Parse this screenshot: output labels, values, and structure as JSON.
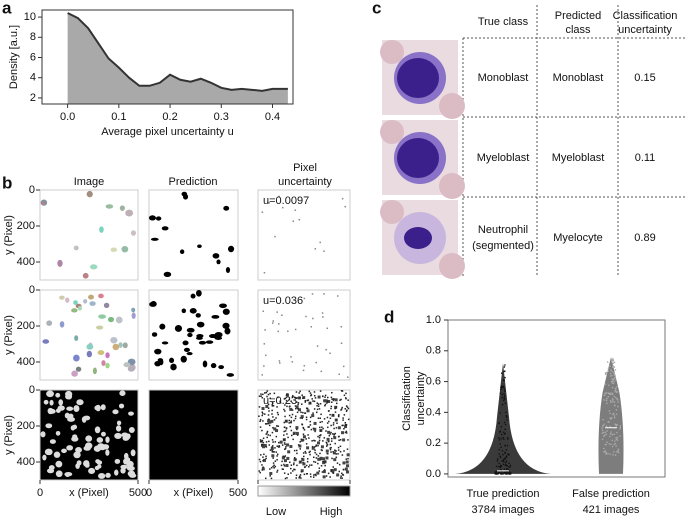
{
  "panel_letters": [
    "a",
    "b",
    "c",
    "d"
  ],
  "chart_data": [
    {
      "type": "area",
      "ylabel": "Density [a.u.]",
      "xlabel": "Average pixel uncertainty u",
      "x": [
        0,
        0.02,
        0.04,
        0.06,
        0.08,
        0.1,
        0.12,
        0.14,
        0.16,
        0.18,
        0.2,
        0.22,
        0.24,
        0.26,
        0.28,
        0.3,
        0.32,
        0.34,
        0.36,
        0.38,
        0.4,
        0.43
      ],
      "values": [
        10.4,
        9.9,
        8.9,
        7.4,
        5.9,
        5.0,
        4.0,
        3.2,
        3.2,
        3.5,
        4.3,
        3.8,
        3.6,
        3.9,
        3.5,
        3.0,
        2.8,
        2.9,
        2.8,
        2.7,
        2.9,
        2.9
      ],
      "color": "#a9a9a9",
      "line_color": "#333333",
      "xlim": [
        -0.05,
        0.44
      ],
      "ylim": [
        1.4,
        10.7
      ],
      "xticks": [
        {
          "value": 0,
          "label": "0.0"
        },
        0.1,
        0.2,
        0.3,
        0.4
      ],
      "yticks": [
        2,
        4,
        6,
        8,
        10
      ]
    },
    {
      "type": "violin",
      "ylabel": [
        "Classification",
        "uncertainty"
      ],
      "categories": [
        "True prediction",
        "False prediction"
      ],
      "sublabels": [
        "3784 images",
        "421 images"
      ],
      "values": [
        [
          0,
          0.02,
          0.72
        ],
        [
          0,
          0.3,
          0.76
        ]
      ],
      "colors": [
        "#3a3a3a",
        "#7d7d7d"
      ],
      "ylim": [
        -0.02,
        1.0
      ],
      "yticks": [
        {
          "value": 0,
          "label": "0.0"
        },
        0.2,
        0.4,
        0.6,
        0.8,
        {
          "value": 1,
          "label": "1.0"
        }
      ]
    }
  ],
  "panel_b": {
    "columns": [
      "Image",
      "Prediction",
      [
        "Pixel",
        "uncertainty"
      ]
    ],
    "annotations": [
      "u=0.0097",
      "u=0.036",
      "u=0.23"
    ],
    "y_label": "y (Pixel)",
    "x_label": "x (Pixel)",
    "xlim": [
      0,
      500
    ],
    "ylim": [
      0,
      500
    ],
    "yticks": [
      0,
      200,
      400
    ],
    "xticks": [
      0,
      500
    ],
    "colorbar": [
      "Low",
      "High"
    ]
  },
  "panel_c": {
    "header": [
      "True class",
      [
        "Predicted",
        "class"
      ],
      [
        "Classification",
        "uncertainty"
      ]
    ],
    "rows": [
      [
        [
          "Monoblast"
        ],
        "Monoblast",
        "0.15"
      ],
      [
        [
          "Myeloblast"
        ],
        "Myeloblast",
        "0.11"
      ],
      [
        [
          "Neutrophil",
          "(segmented)"
        ],
        "Myelocyte",
        "0.89"
      ]
    ]
  }
}
